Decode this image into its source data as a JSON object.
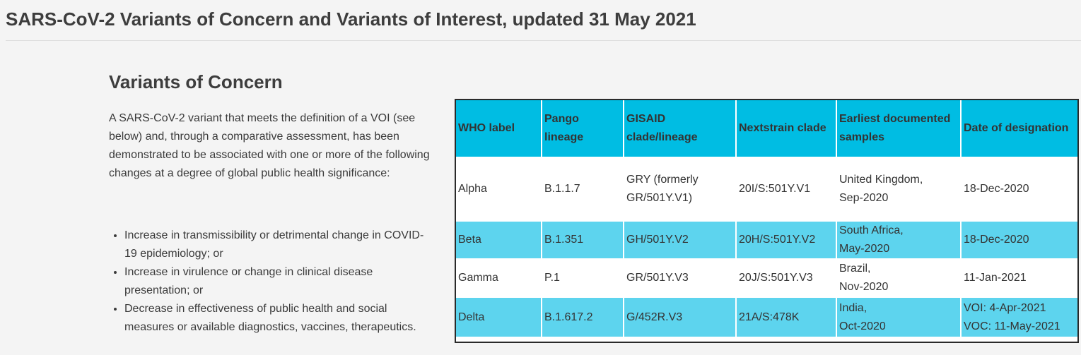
{
  "page": {
    "title": "SARS-CoV-2 Variants of Concern and Variants of Interest, updated 31 May 2021"
  },
  "section": {
    "heading": "Variants of Concern",
    "definition": "A SARS-CoV-2 variant that meets the definition of a VOI (see below) and, through a comparative assessment, has been demonstrated to be associated with one or more of the following changes at a degree of global public health significance:",
    "criteria": [
      "Increase in transmissibility or detrimental change in COVID-19 epidemiology; or",
      "Increase in virulence or change in clinical disease presentation; or",
      "Decrease in effectiveness of public health and social measures or available diagnostics, vaccines, therapeutics."
    ]
  },
  "table": {
    "headers": [
      "WHO label",
      "Pango lineage",
      "GISAID clade/lineage",
      "Nextstrain clade",
      "Earliest documented samples",
      "Date of designation"
    ],
    "rows": [
      {
        "who_label": "Alpha",
        "pango": "B.1.1.7",
        "gisaid": "GRY (formerly GR/501Y.V1)",
        "nextstrain": "20I/S:501Y.V1",
        "earliest_line1": "United Kingdom,",
        "earliest_line2": "Sep-2020",
        "date_line1": "18-Dec-2020",
        "date_line2": ""
      },
      {
        "who_label": "Beta",
        "pango": "B.1.351",
        "gisaid": "GH/501Y.V2",
        "nextstrain": "20H/S:501Y.V2",
        "earliest_line1": "South Africa,",
        "earliest_line2": "May-2020",
        "date_line1": "18-Dec-2020",
        "date_line2": ""
      },
      {
        "who_label": "Gamma",
        "pango": "P.1",
        "gisaid": "GR/501Y.V3",
        "nextstrain": "20J/S:501Y.V3",
        "earliest_line1": "Brazil,",
        "earliest_line2": "Nov-2020",
        "date_line1": "11-Jan-2021",
        "date_line2": ""
      },
      {
        "who_label": "Delta",
        "pango": "B.1.617.2",
        "gisaid": "G/452R.V3",
        "nextstrain": "21A/S:478K",
        "earliest_line1": "India,",
        "earliest_line2": "Oct-2020",
        "date_line1": "VOI: 4-Apr-2021",
        "date_line2": "VOC: 11-May-2021"
      }
    ]
  },
  "colors": {
    "header_bg": "#00bde3",
    "row_highlight": "#5dd4ee",
    "page_bg": "#f4f4f4"
  }
}
